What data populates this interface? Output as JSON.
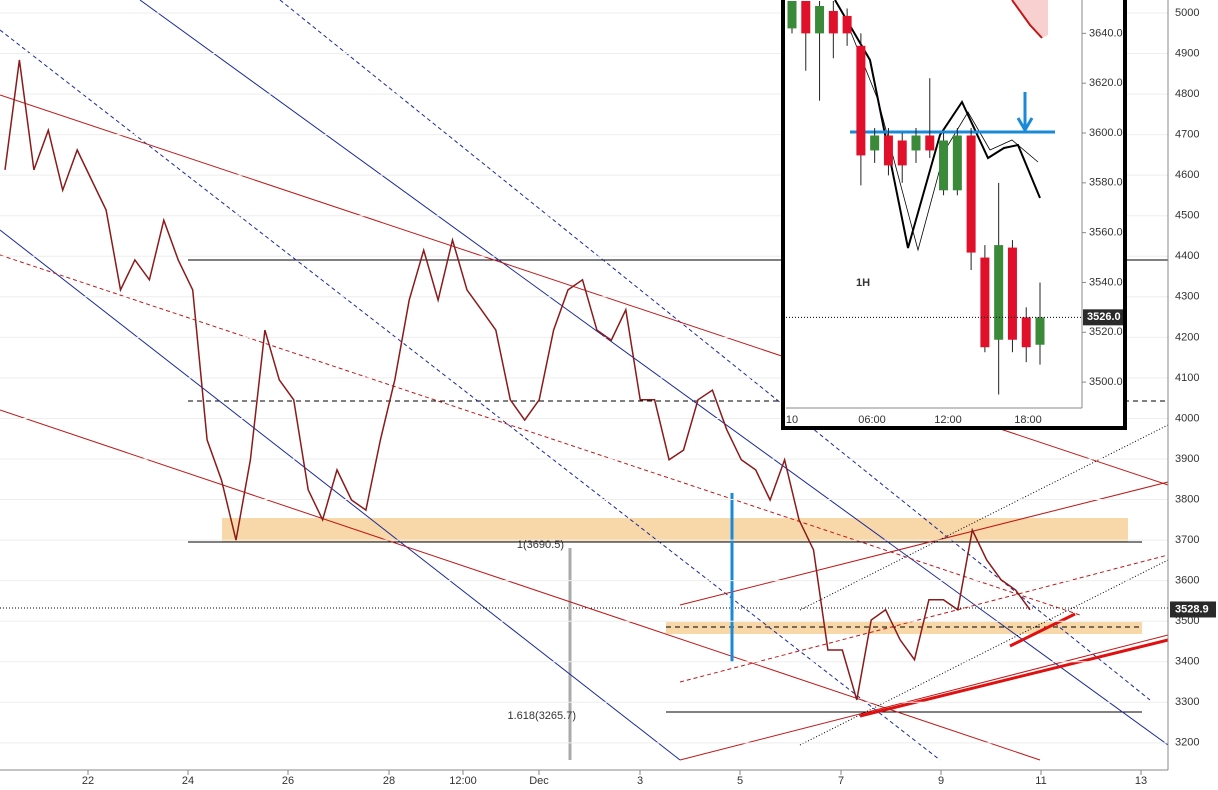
{
  "chart_data": [
    {
      "type": "line",
      "color": "#8b1a1a",
      "values": [
        4613,
        4884,
        4613,
        4711,
        4563,
        4662,
        4588,
        4514,
        4317,
        4391,
        4342,
        4489,
        4391,
        4317,
        3947,
        3848,
        3700,
        3898,
        4218,
        4095,
        4046,
        3824,
        3750,
        3873,
        3799,
        3774,
        3947,
        4095,
        4292,
        4415,
        4292,
        4440,
        4317,
        4268,
        4218,
        4046,
        3996,
        4046,
        4218,
        4317,
        4342,
        4218,
        4193,
        4268,
        4046,
        4046,
        3898,
        3922,
        4046,
        4070,
        3972,
        3898,
        3873,
        3799,
        3898,
        3750,
        3676,
        3429,
        3429,
        3306,
        3503,
        3528,
        3454,
        3405,
        3553,
        3553,
        3528,
        3725,
        3651,
        3602,
        3577,
        3528
      ],
      "ylim": [
        3133,
        5032
      ],
      "yticks": [
        3200,
        3300,
        3400,
        3500,
        3600,
        3700,
        3800,
        3900,
        4000,
        4100,
        4200,
        4300,
        4400,
        4500,
        4600,
        4700,
        4800,
        4900,
        5000
      ],
      "x_labels": [
        "22",
        "24",
        "26",
        "28",
        "12:00",
        "Dec",
        "3",
        "5",
        "7",
        "9",
        "11",
        "13"
      ],
      "last_price": 3528.9,
      "annotations": [
        "1(3690.5)",
        "1.618(3265.7)"
      ]
    },
    {
      "type": "candlestick",
      "title": "1H",
      "up_color": "#3a8a3a",
      "down_color": "#e0102a",
      "open": [
        3642,
        3653,
        3640,
        3649,
        3647,
        3635,
        3593,
        3599,
        3597,
        3593,
        3599,
        3577,
        3577,
        3599,
        3550,
        3517,
        3554,
        3526,
        3515
      ],
      "high": [
        3653,
        3653,
        3653,
        3653,
        3650,
        3640,
        3602,
        3602,
        3600,
        3602,
        3622,
        3600,
        3602,
        3602,
        3555,
        3580,
        3557,
        3530,
        3540
      ],
      "low": [
        3640,
        3625,
        3613,
        3630,
        3635,
        3579,
        3588,
        3583,
        3580,
        3588,
        3590,
        3575,
        3575,
        3545,
        3512,
        3495,
        3512,
        3508,
        3507
      ],
      "close": [
        3653,
        3640,
        3651,
        3640,
        3640,
        3591,
        3599,
        3587,
        3587,
        3599,
        3593,
        3597,
        3599,
        3552,
        3514,
        3555,
        3517,
        3514,
        3526
      ],
      "ylim": [
        3489.6,
        3653.4
      ],
      "yticks": [
        {
          "value": 3500,
          "label": "3500.0"
        },
        {
          "value": 3520,
          "label": "3520.0"
        },
        {
          "value": 3540,
          "label": "3540.0"
        },
        {
          "value": 3560,
          "label": "3560.0"
        },
        {
          "value": 3580,
          "label": "3580.0"
        },
        {
          "value": 3600,
          "label": "3600.0"
        },
        {
          "value": 3620,
          "label": "3620.0"
        },
        {
          "value": 3640,
          "label": "3640.0"
        }
      ],
      "x_labels": [
        "10",
        "06:00",
        "12:00",
        "18:00"
      ],
      "last_price": {
        "value": 3526,
        "label": "3526.0"
      }
    }
  ]
}
